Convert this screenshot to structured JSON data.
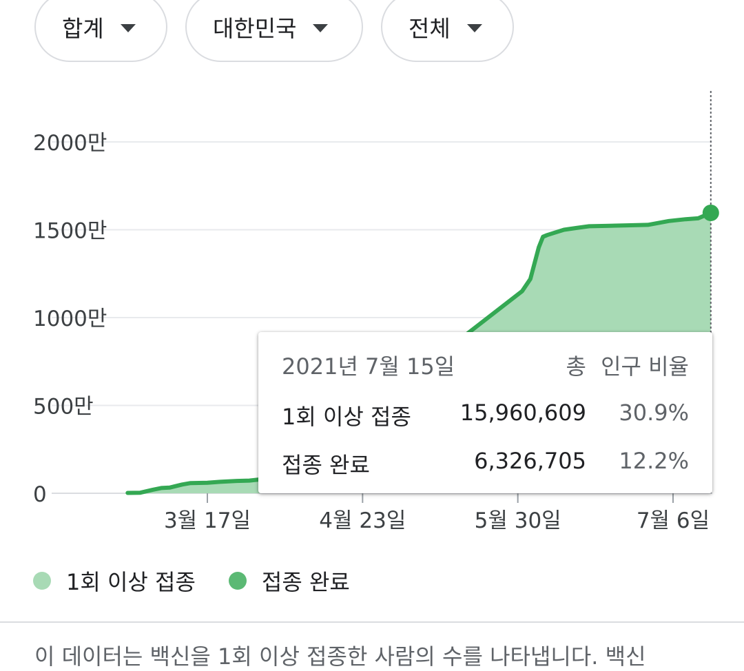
{
  "filters": [
    {
      "label": "합계"
    },
    {
      "label": "대한민국"
    },
    {
      "label": "전체"
    }
  ],
  "tooltip": {
    "date": "2021년 7월 15일",
    "col_total": "총",
    "col_ratio": "인구 비율",
    "rows": [
      {
        "label": "1회 이상 접종",
        "total": "15,960,609",
        "ratio": "30.9%"
      },
      {
        "label": "접종 완료",
        "total": "6,326,705",
        "ratio": "12.2%"
      }
    ]
  },
  "legend": [
    {
      "label": "1회 이상 접종",
      "color": "#a8dab5"
    },
    {
      "label": "접종 완료",
      "color": "#5bb974"
    }
  ],
  "note": "이 데이터는 백신을 1회 이상 접종한 사람의 수를 나타냅니다. 백신",
  "chart_data": {
    "type": "area",
    "y_tick_labels": [
      "0",
      "500만",
      "1000만",
      "1500만",
      "2000만"
    ],
    "y_ticks": [
      0,
      5000000,
      10000000,
      15000000,
      20000000
    ],
    "ylim": [
      0,
      22500000
    ],
    "x_ticks": [
      {
        "date": "2021-03-17",
        "label": "3월 17일"
      },
      {
        "date": "2021-04-23",
        "label": "4월 23일"
      },
      {
        "date": "2021-05-30",
        "label": "5월 30일"
      },
      {
        "date": "2021-07-06",
        "label": "7월 6일"
      }
    ],
    "xlim": [
      "2021-02-20",
      "2021-07-15"
    ],
    "series": [
      {
        "name": "1회 이상 접종",
        "color": "#34a853",
        "fill": "#a8dab5",
        "points": [
          [
            "2021-02-26",
            20000
          ],
          [
            "2021-03-01",
            30000
          ],
          [
            "2021-03-04",
            200000
          ],
          [
            "2021-03-06",
            300000
          ],
          [
            "2021-03-08",
            320000
          ],
          [
            "2021-03-11",
            500000
          ],
          [
            "2021-03-13",
            580000
          ],
          [
            "2021-03-17",
            600000
          ],
          [
            "2021-03-20",
            650000
          ],
          [
            "2021-03-24",
            700000
          ],
          [
            "2021-03-27",
            720000
          ],
          [
            "2021-03-30",
            800000
          ],
          [
            "2021-04-01",
            900000
          ],
          [
            "2021-04-04",
            950000
          ],
          [
            "2021-05-31",
            11500000
          ],
          [
            "2021-06-02",
            12200000
          ],
          [
            "2021-06-04",
            14000000
          ],
          [
            "2021-06-05",
            14600000
          ],
          [
            "2021-06-06",
            14700000
          ],
          [
            "2021-06-08",
            14850000
          ],
          [
            "2021-06-10",
            15000000
          ],
          [
            "2021-06-13",
            15100000
          ],
          [
            "2021-06-16",
            15200000
          ],
          [
            "2021-06-20",
            15220000
          ],
          [
            "2021-06-25",
            15250000
          ],
          [
            "2021-06-30",
            15280000
          ],
          [
            "2021-07-05",
            15500000
          ],
          [
            "2021-07-09",
            15600000
          ],
          [
            "2021-07-12",
            15650000
          ],
          [
            "2021-07-15",
            15960609
          ]
        ]
      }
    ],
    "grid": true,
    "legend_position": "bottom"
  }
}
